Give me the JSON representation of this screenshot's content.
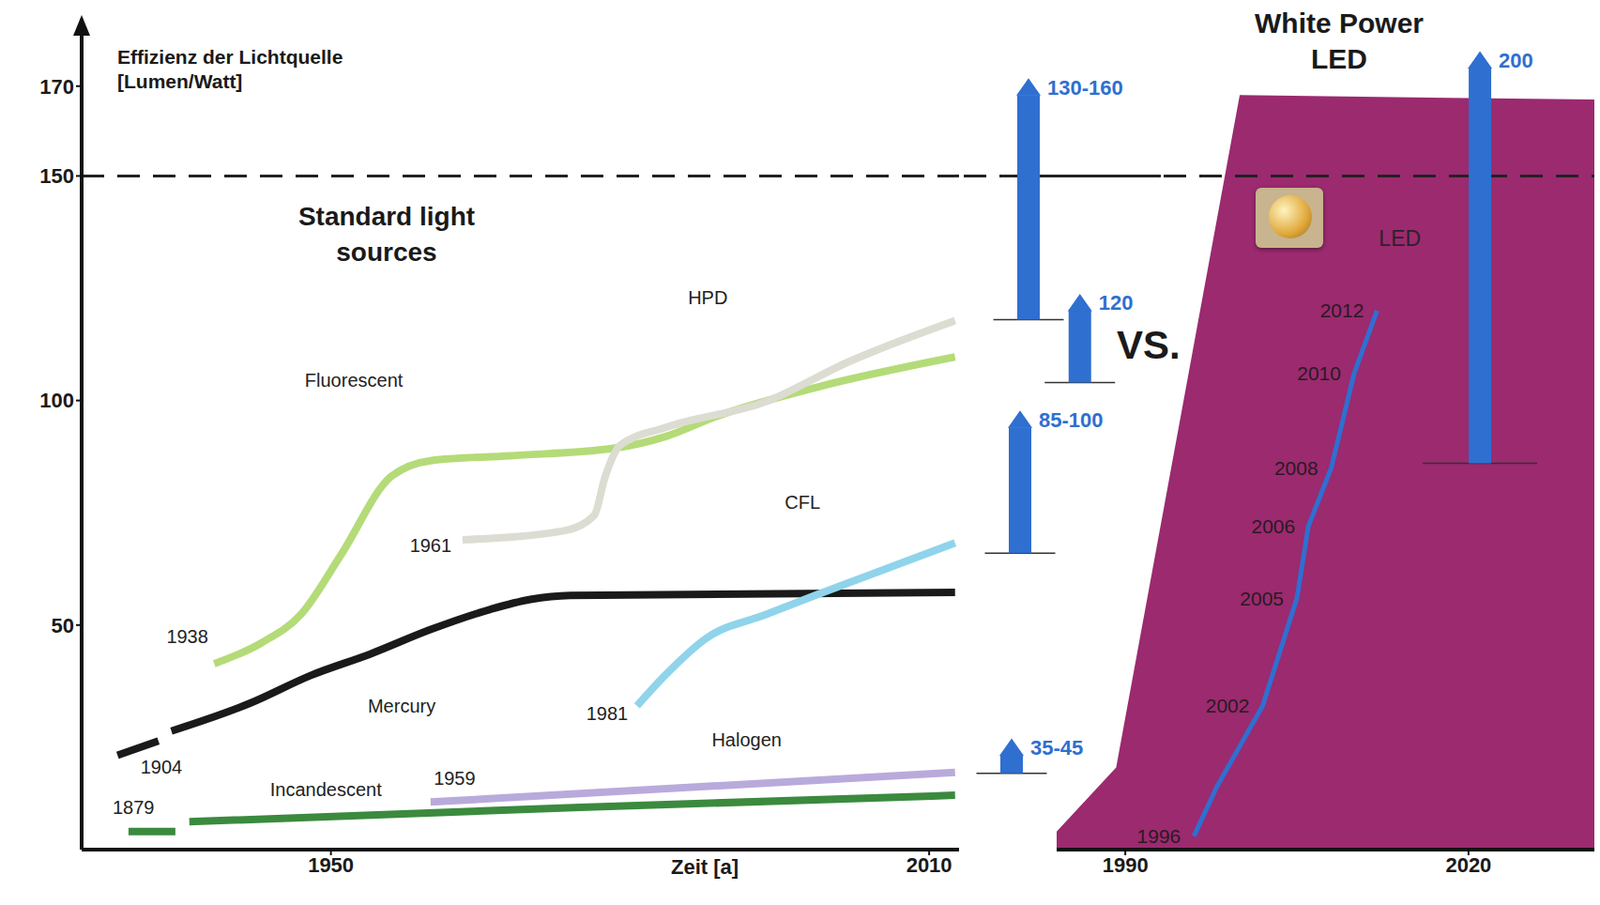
{
  "chart_data": [
    {
      "type": "line",
      "title": "Standard light sources",
      "y_label": "Effizienz der Lichtquelle [Lumen/Watt]",
      "x_label": "Zeit [a]",
      "xlim": [
        1925,
        2013
      ],
      "xticks": [
        1950,
        2010
      ],
      "ylim": [
        0,
        185
      ],
      "yticks": [
        50,
        100,
        150,
        170
      ],
      "reference_y": 150,
      "series": [
        {
          "name": "Incandescent",
          "color": "#3b8a3e",
          "x": [
            1929.7,
            1934.4,
            1935.1,
            1935.8,
            1975,
            2012.6
          ],
          "values": [
            4,
            4,
            null,
            6.2,
            9.4,
            12.1
          ],
          "start_label": "1879",
          "start_at": [
            1930.2,
            9.5
          ],
          "name_at": [
            1949.5,
            13.4
          ]
        },
        {
          "name": "Mercury",
          "color": "#1a1a1a",
          "x": [
            1928.6,
            1932.7,
            1933.4,
            1934,
            1941.9,
            1948,
            1954,
            1960,
            1966,
            1970,
            1974,
            2012.6
          ],
          "values": [
            21,
            24.2,
            null,
            26.4,
            32.6,
            38.8,
            43.6,
            49,
            53.5,
            55.7,
            56.6,
            57.3
          ],
          "start_label": "1904",
          "start_at": [
            1933,
            18.5
          ],
          "name_at": [
            1957.1,
            32
          ]
        },
        {
          "name": "Fluorescent",
          "color": "#b4db78",
          "x": [
            1938.3,
            1943,
            1947,
            1951,
            1956,
            1960,
            1968,
            1978.5,
            1983.6,
            1988.7,
            1998.8,
            2012.6
          ],
          "values": [
            41.4,
            46,
            52.4,
            65.6,
            83,
            86.6,
            87.7,
            89.4,
            92,
            96.5,
            103,
            109.7
          ],
          "start_label": "1938",
          "start_at": [
            1935.6,
            47.4
          ],
          "name_at": [
            1952.3,
            104.6
          ]
        },
        {
          "name": "HPD",
          "color": "#dcdcd2",
          "x": [
            1963.2,
            1973.4,
            1976.4,
            1977.5,
            1979,
            1983.6,
            1993.7,
            2001.9,
            2012.6
          ],
          "values": [
            69,
            71,
            74.4,
            83,
            90,
            94,
            99.8,
            108.6,
            117.8
          ],
          "start_label": "1961",
          "start_at": [
            1960,
            67.8
          ],
          "name_at": [
            1987.8,
            122.9
          ]
        },
        {
          "name": "CFL",
          "color": "#8fd4ea",
          "x": [
            1980.7,
            1983.6,
            1987.6,
            1993.7,
            1998.8,
            2012.6
          ],
          "values": [
            32,
            39,
            47,
            52.4,
            56.8,
            68.3
          ],
          "start_label": "1981",
          "start_at": [
            1977.7,
            30.4
          ],
          "name_at": [
            1997.3,
            77.3
          ]
        },
        {
          "name": "Halogen",
          "color": "#b9aadc",
          "x": [
            1960,
            2012.6
          ],
          "values": [
            10.6,
            17.2
          ],
          "start_label": "1959",
          "start_at": [
            1962.4,
            15.9
          ],
          "name_at": [
            1991.7,
            24.4
          ]
        }
      ]
    },
    {
      "type": "arrow",
      "tick_labels": false,
      "ylim": [
        0,
        185
      ],
      "reference_y": 150,
      "color": "#2f6fd0",
      "arrows": [
        {
          "label": "130-160",
          "from": 118,
          "to": 168
        },
        {
          "label": "120",
          "from": 104,
          "to": 120
        },
        {
          "label": "85-100",
          "from": 66,
          "to": 94
        },
        {
          "label": "35-45",
          "from": 17,
          "to": 21
        }
      ],
      "annotations": [
        "VS."
      ]
    },
    {
      "type": "line",
      "title": "White Power LED",
      "tick_labels": "x",
      "xlim": [
        1984,
        2031
      ],
      "xticks": [
        1990,
        2020
      ],
      "ylim": [
        0,
        185
      ],
      "reference_y": 150,
      "color": "#2f6fd0",
      "region": {
        "color": "#9b2a6f",
        "x": [
          1984,
          1989.2,
          2000,
          2031
        ],
        "values": [
          4,
          18.3,
          168,
          167
        ]
      },
      "series": [
        {
          "name": "LED",
          "color": "#2f6fd0",
          "x": [
            1996,
            1998,
            2002,
            2005,
            2006,
            2008,
            2010,
            2012
          ],
          "values": [
            3,
            14,
            32,
            56,
            72,
            85,
            106,
            120
          ],
          "point_labels": [
            "1996",
            null,
            "2002",
            "2005",
            "2006",
            "2008",
            "2010",
            "2012"
          ],
          "name_at": [
            2014,
            136
          ]
        }
      ],
      "arrows": [
        {
          "label": "200",
          "x": 2021,
          "from": 86,
          "to": 174
        }
      ]
    }
  ]
}
